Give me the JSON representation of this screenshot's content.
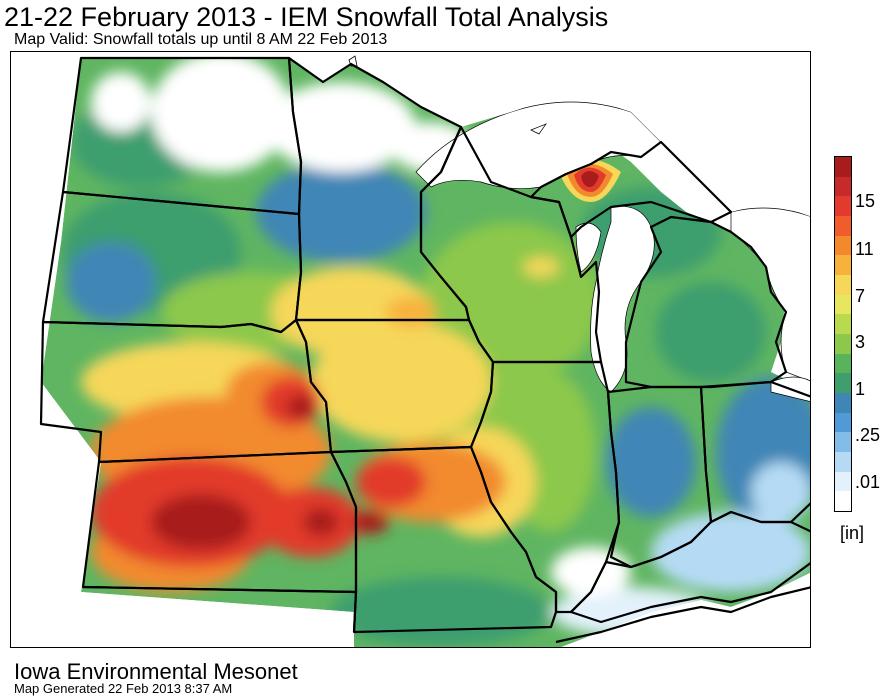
{
  "title": "21-22 February 2013 - IEM Snowfall Total Analysis",
  "subtitle": "Map Valid: Snowfall totals up until 8 AM 22 Feb 2013",
  "legend": {
    "units": "[in]",
    "labels": [
      "15",
      "11",
      "7",
      "3",
      "1",
      ".25",
      ".01"
    ],
    "colors_top_to_bottom": [
      "#a81c1c",
      "#c72a2a",
      "#e23a2c",
      "#ef5d2c",
      "#f28a2d",
      "#f7b23c",
      "#f6d75a",
      "#e7e75d",
      "#b9d94f",
      "#8cc84b",
      "#58b35a",
      "#3e9e6e",
      "#3f86b6",
      "#4f9ad7",
      "#81bde8",
      "#b5dbf4",
      "#e2f1fb",
      "#ffffff"
    ]
  },
  "footer": {
    "organization": "Iowa Environmental Mesonet",
    "generated": "Map Generated 22 Feb 2013 8:37 AM"
  }
}
